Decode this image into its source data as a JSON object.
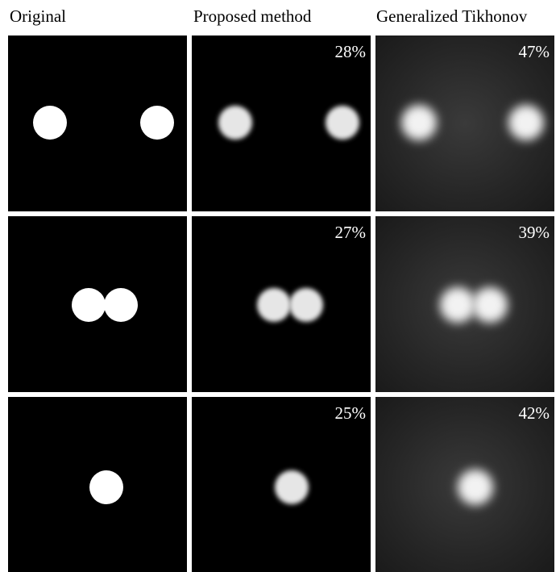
{
  "columns": [
    "Original",
    "Proposed method",
    "Generalized Tikhonov"
  ],
  "rows": [
    {
      "proposed": "28%",
      "tikhonov": "47%"
    },
    {
      "proposed": "27%",
      "tikhonov": "39%"
    },
    {
      "proposed": "25%",
      "tikhonov": "42%"
    }
  ]
}
